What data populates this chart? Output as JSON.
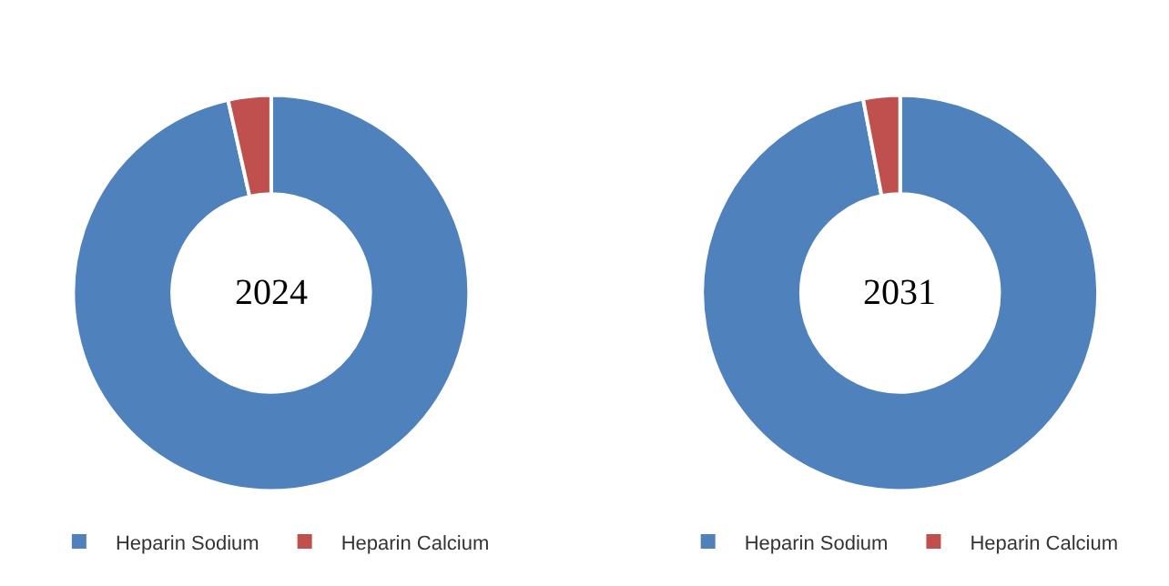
{
  "chart_data": [
    {
      "type": "donut",
      "title": "2024",
      "categories": [
        "Heparin Sodium",
        "Heparin Calcium"
      ],
      "values": [
        96.5,
        3.5
      ],
      "colors": [
        "#4f81bd",
        "#c0504d"
      ],
      "legend": "bottom"
    },
    {
      "type": "donut",
      "title": "2031",
      "categories": [
        "Heparin Sodium",
        "Heparin Calcium"
      ],
      "values": [
        97,
        3
      ],
      "colors": [
        "#4f81bd",
        "#c0504d"
      ],
      "legend": "bottom"
    }
  ]
}
